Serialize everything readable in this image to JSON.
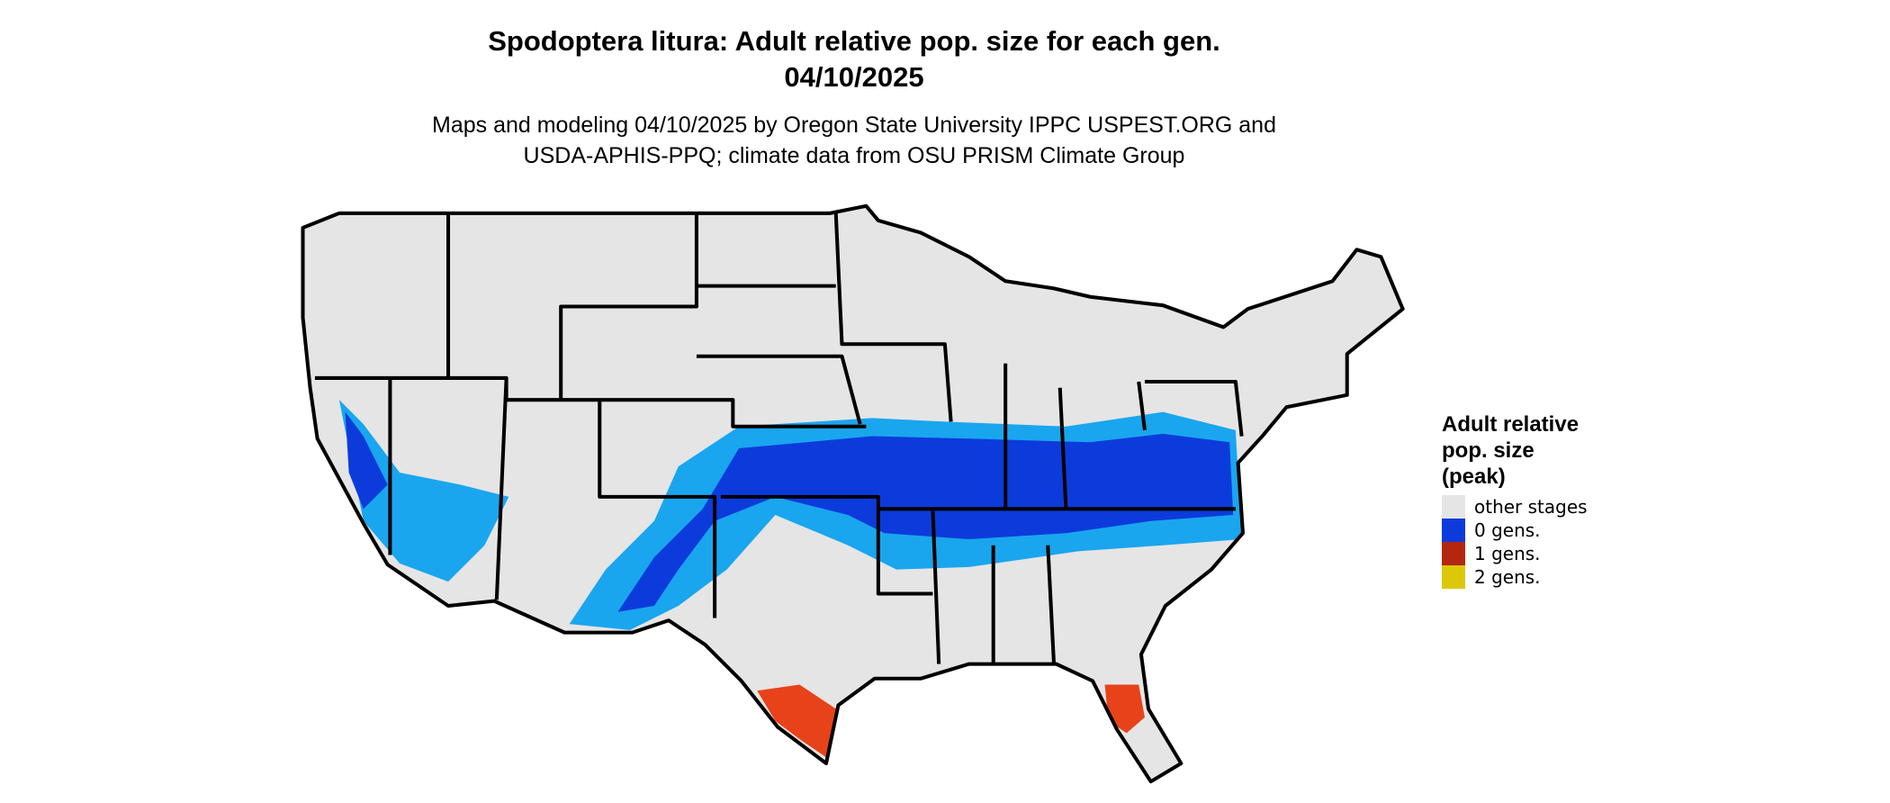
{
  "header": {
    "title": "Spodoptera litura: Adult relative pop. size for each gen.",
    "date": "04/10/2025",
    "subtitle": [
      "Maps and modeling 04/10/2025 by Oregon State University IPPC USPEST.ORG and",
      "USDA-APHIS-PPQ; climate data from OSU PRISM Climate Group"
    ]
  },
  "legend": {
    "title": [
      "Adult relative",
      "pop. size",
      "(peak)"
    ],
    "items": [
      {
        "label": "other stages",
        "color": "#e5e5e5"
      },
      {
        "label": "0 gens.",
        "color": "#0d3bdb"
      },
      {
        "label": "1 gens.",
        "color": "#b3260f"
      },
      {
        "label": "2 gens.",
        "color": "#dcc80a"
      }
    ]
  }
}
